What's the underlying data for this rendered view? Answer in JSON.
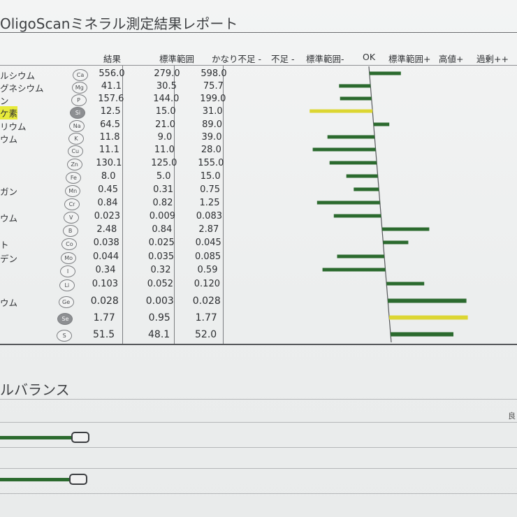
{
  "report": {
    "title": "OligoScanミネラル測定結果レポート"
  },
  "columns": {
    "result": "結果",
    "standard_range": "標準範囲",
    "scale": [
      "かなり不足 -",
      "不足 -",
      "標準範囲-",
      "OK",
      "標準範囲+",
      "高値+",
      "過剰++"
    ]
  },
  "colors": {
    "bar_green": "#2b6a2e",
    "bar_yellow": "#dcd632"
  },
  "rows": [
    {
      "label": "ルシウム",
      "symbol": "Ca",
      "result": "556.0",
      "low": "279.0",
      "high": "598.0",
      "bar_value": 1,
      "bar_color": "green",
      "highlight": false
    },
    {
      "label": "グネシウム",
      "symbol": "Mg",
      "result": "41.1",
      "low": "30.5",
      "high": "75.7",
      "bar_value": -1,
      "bar_color": "green",
      "highlight": false
    },
    {
      "label": "ン",
      "symbol": "P",
      "result": "157.6",
      "low": "144.0",
      "high": "199.0",
      "bar_value": -1,
      "bar_color": "green",
      "highlight": false
    },
    {
      "label": "ケ素",
      "symbol": "Si",
      "result": "12.5",
      "low": "15.0",
      "high": "31.0",
      "bar_value": -2,
      "bar_color": "yellow",
      "highlight": true
    },
    {
      "label": "リウム",
      "symbol": "Na",
      "result": "64.5",
      "low": "21.0",
      "high": "89.0",
      "bar_value": 0.5,
      "bar_color": "green",
      "highlight": false
    },
    {
      "label": "ウム",
      "symbol": "K",
      "result": "11.8",
      "low": "9.0",
      "high": "39.0",
      "bar_value": -1.5,
      "bar_color": "green",
      "highlight": false
    },
    {
      "label": "",
      "symbol": "Cu",
      "result": "11.1",
      "low": "11.0",
      "high": "28.0",
      "bar_value": -2,
      "bar_color": "green",
      "highlight": false
    },
    {
      "label": "",
      "symbol": "Zn",
      "result": "130.1",
      "low": "125.0",
      "high": "155.0",
      "bar_value": -1.5,
      "bar_color": "green",
      "highlight": false
    },
    {
      "label": "",
      "symbol": "Fe",
      "result": "8.0",
      "low": "5.0",
      "high": "15.0",
      "bar_value": -1,
      "bar_color": "green",
      "highlight": false
    },
    {
      "label": "ガン",
      "symbol": "Mn",
      "result": "0.45",
      "low": "0.31",
      "high": "0.75",
      "bar_value": -0.8,
      "bar_color": "green",
      "highlight": false
    },
    {
      "label": "",
      "symbol": "Cr",
      "result": "0.84",
      "low": "0.82",
      "high": "1.25",
      "bar_value": -2,
      "bar_color": "green",
      "highlight": false
    },
    {
      "label": "ウム",
      "symbol": "V",
      "result": "0.023",
      "low": "0.009",
      "high": "0.083",
      "bar_value": -1.5,
      "bar_color": "green",
      "highlight": false
    },
    {
      "label": "",
      "symbol": "B",
      "result": "2.48",
      "low": "0.84",
      "high": "2.87",
      "bar_value": 1.5,
      "bar_color": "green",
      "highlight": false
    },
    {
      "label": "ト",
      "symbol": "Co",
      "result": "0.038",
      "low": "0.025",
      "high": "0.045",
      "bar_value": 0.8,
      "bar_color": "green",
      "highlight": false
    },
    {
      "label": "デン",
      "symbol": "Mo",
      "result": "0.044",
      "low": "0.035",
      "high": "0.085",
      "bar_value": -1.5,
      "bar_color": "green",
      "highlight": false
    },
    {
      "label": "",
      "symbol": "I",
      "result": "0.34",
      "low": "0.32",
      "high": "0.59",
      "bar_value": -2,
      "bar_color": "green",
      "highlight": false
    },
    {
      "label": "",
      "symbol": "Li",
      "result": "0.103",
      "low": "0.052",
      "high": "0.120",
      "bar_value": 1.2,
      "bar_color": "green",
      "highlight": false
    },
    {
      "label": "ウム",
      "symbol": "Ge",
      "result": "0.028",
      "low": "0.003",
      "high": "0.028",
      "bar_value": 2.5,
      "bar_color": "green",
      "highlight": false
    },
    {
      "label": "",
      "symbol": "Se",
      "result": "1.77",
      "low": "0.95",
      "high": "1.77",
      "bar_value": 2.5,
      "bar_color": "yellow",
      "highlight": false
    },
    {
      "label": "",
      "symbol": "S",
      "result": "51.5",
      "low": "48.1",
      "high": "52.0",
      "bar_value": 2,
      "bar_color": "green",
      "highlight": false
    }
  ],
  "balance": {
    "title": "ルバランス",
    "edge_text": "良",
    "sliders": [
      {
        "value": 0.9
      },
      {
        "value": 0.88
      }
    ]
  }
}
